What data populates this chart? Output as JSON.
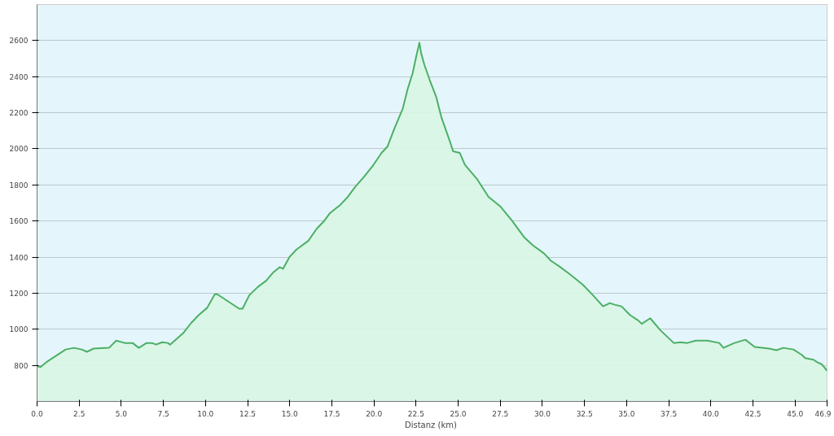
{
  "chart_data": {
    "type": "area",
    "xlabel": "Distanz  (km)",
    "xlim": [
      0,
      46.9
    ],
    "ylim": [
      600,
      2800
    ],
    "xticks": [
      {
        "value": 0,
        "label": "0.0"
      },
      {
        "value": 2.5,
        "label": "2.5"
      },
      {
        "value": 5,
        "label": "5.0"
      },
      {
        "value": 7.5,
        "label": "7.5"
      },
      {
        "value": 10,
        "label": "10.0"
      },
      {
        "value": 12.5,
        "label": "12.5"
      },
      {
        "value": 15,
        "label": "15.0"
      },
      {
        "value": 17.5,
        "label": "17.5"
      },
      {
        "value": 20,
        "label": "20.0"
      },
      {
        "value": 22.5,
        "label": "22.5"
      },
      {
        "value": 25,
        "label": "25.0"
      },
      {
        "value": 27.5,
        "label": "27.5"
      },
      {
        "value": 30,
        "label": "30.0"
      },
      {
        "value": 32.5,
        "label": "32.5"
      },
      {
        "value": 35,
        "label": "35.0"
      },
      {
        "value": 37.5,
        "label": "37.5"
      },
      {
        "value": 40,
        "label": "40.0"
      },
      {
        "value": 42.5,
        "label": "42.5"
      },
      {
        "value": 45,
        "label": "45.0"
      },
      {
        "value": 46.9,
        "label": "46.9"
      }
    ],
    "yticks": [
      800,
      1000,
      1200,
      1400,
      1600,
      1800,
      2000,
      2200,
      2400,
      2600
    ],
    "grid": "y",
    "series": [
      {
        "color": "#4caf65",
        "x": [
          0,
          0.2,
          0.56,
          1.0,
          1.7,
          2.2,
          2.65,
          2.97,
          3.35,
          4.27,
          4.7,
          5.2,
          5.67,
          6.04,
          6.5,
          6.83,
          7.06,
          7.43,
          7.76,
          7.9,
          8.7,
          9.15,
          9.6,
          10.1,
          10.55,
          10.7,
          12.0,
          12.2,
          12.6,
          13.1,
          13.6,
          14.0,
          14.4,
          14.6,
          15.0,
          15.4,
          16.1,
          16.6,
          17.05,
          17.4,
          18.0,
          18.45,
          18.9,
          19.4,
          19.9,
          20.45,
          20.8,
          21.2,
          21.7,
          22.0,
          22.3,
          22.5,
          22.7,
          22.8,
          23.0,
          23.3,
          23.7,
          24.0,
          24.5,
          24.7,
          25.1,
          25.4,
          26.1,
          26.8,
          27.5,
          28.2,
          28.9,
          29.4,
          30.1,
          30.5,
          31.0,
          31.7,
          32.4,
          33.0,
          33.6,
          34.0,
          34.3,
          34.7,
          35.2,
          35.7,
          35.9,
          36.4,
          37.0,
          37.8,
          38.2,
          38.6,
          39.1,
          39.8,
          40.5,
          40.75,
          41.4,
          42.05,
          42.6,
          43.45,
          43.9,
          44.3,
          44.9,
          45.4,
          45.6,
          46.1,
          46.3,
          46.6,
          46.9
        ],
        "values": [
          796,
          790,
          818,
          845,
          888,
          897,
          888,
          875,
          893,
          897,
          937,
          924,
          924,
          897,
          924,
          924,
          915,
          928,
          924,
          915,
          981,
          1035,
          1079,
          1119,
          1194,
          1194,
          1114,
          1114,
          1189,
          1234,
          1269,
          1313,
          1344,
          1335,
          1402,
          1442,
          1490,
          1557,
          1601,
          1645,
          1689,
          1734,
          1791,
          1844,
          1902,
          1977,
          2012,
          2110,
          2220,
          2331,
          2420,
          2508,
          2588,
          2530,
          2464,
          2384,
          2287,
          2176,
          2043,
          1986,
          1977,
          1911,
          1835,
          1734,
          1681,
          1601,
          1512,
          1468,
          1420,
          1380,
          1349,
          1300,
          1247,
          1189,
          1127,
          1145,
          1136,
          1127,
          1079,
          1048,
          1030,
          1061,
          995,
          924,
          928,
          924,
          937,
          937,
          924,
          897,
          924,
          942,
          902,
          893,
          884,
          897,
          888,
          858,
          840,
          831,
          818,
          805,
          770
        ]
      }
    ]
  }
}
